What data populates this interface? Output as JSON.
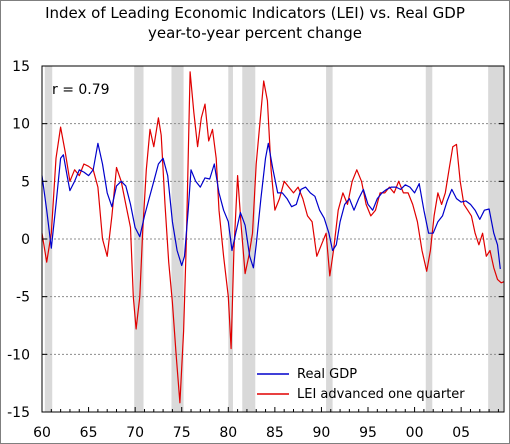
{
  "chart_data": {
    "type": "line",
    "title": "Index of Leading Economic Indicators (LEI) vs. Real GDP",
    "subtitle": "year-to-year percent change",
    "annotation": "r = 0.79",
    "xlabel": "",
    "ylabel": "",
    "xlim": [
      1960,
      2009.6
    ],
    "ylim": [
      -15,
      15
    ],
    "xticks": [
      1960,
      1965,
      1970,
      1975,
      1980,
      1985,
      1990,
      1995,
      2000,
      2005
    ],
    "xtick_labels": [
      "60",
      "65",
      "70",
      "75",
      "80",
      "85",
      "90",
      "95",
      "00",
      "05"
    ],
    "yticks": [
      -15,
      -10,
      -5,
      0,
      5,
      10,
      15
    ],
    "ytick_labels": [
      "-15",
      "-10",
      "-5",
      "0",
      "5",
      "10",
      "15"
    ],
    "grid": "horizontal dashed",
    "legend_position": "bottom-center",
    "recessions": [
      [
        1960.3,
        1961.1
      ],
      [
        1969.9,
        1970.9
      ],
      [
        1973.9,
        1975.2
      ],
      [
        1980.0,
        1980.5
      ],
      [
        1981.5,
        1982.9
      ],
      [
        1990.5,
        1991.2
      ],
      [
        2001.2,
        2001.9
      ],
      [
        2007.9,
        2009.5
      ]
    ],
    "series": [
      {
        "name": "Real GDP",
        "color": "#0000cc",
        "points": [
          [
            1960.0,
            5.5
          ],
          [
            1960.5,
            2.5
          ],
          [
            1961.0,
            -0.8
          ],
          [
            1961.5,
            3.0
          ],
          [
            1962.0,
            7.0
          ],
          [
            1962.3,
            7.3
          ],
          [
            1962.7,
            5.5
          ],
          [
            1963.0,
            4.2
          ],
          [
            1963.5,
            5.0
          ],
          [
            1964.0,
            6.0
          ],
          [
            1964.5,
            5.8
          ],
          [
            1965.0,
            5.5
          ],
          [
            1965.5,
            6.0
          ],
          [
            1966.0,
            8.3
          ],
          [
            1966.5,
            6.5
          ],
          [
            1967.0,
            4.0
          ],
          [
            1967.5,
            2.8
          ],
          [
            1968.0,
            4.6
          ],
          [
            1968.5,
            5.0
          ],
          [
            1969.0,
            4.6
          ],
          [
            1969.5,
            3.0
          ],
          [
            1970.0,
            1.0
          ],
          [
            1970.5,
            0.2
          ],
          [
            1971.0,
            2.0
          ],
          [
            1971.5,
            3.5
          ],
          [
            1972.0,
            5.0
          ],
          [
            1972.5,
            6.5
          ],
          [
            1973.0,
            7.0
          ],
          [
            1973.5,
            5.5
          ],
          [
            1974.0,
            1.5
          ],
          [
            1974.5,
            -1.0
          ],
          [
            1975.0,
            -2.3
          ],
          [
            1975.3,
            -1.5
          ],
          [
            1975.7,
            2.5
          ],
          [
            1976.0,
            6.0
          ],
          [
            1976.5,
            5.0
          ],
          [
            1977.0,
            4.5
          ],
          [
            1977.5,
            5.3
          ],
          [
            1978.0,
            5.2
          ],
          [
            1978.5,
            6.5
          ],
          [
            1979.0,
            4.0
          ],
          [
            1979.5,
            2.5
          ],
          [
            1980.0,
            1.5
          ],
          [
            1980.4,
            -1.0
          ],
          [
            1980.8,
            0.5
          ],
          [
            1981.3,
            2.3
          ],
          [
            1981.8,
            1.2
          ],
          [
            1982.3,
            -1.5
          ],
          [
            1982.7,
            -2.5
          ],
          [
            1983.0,
            -0.5
          ],
          [
            1983.5,
            3.5
          ],
          [
            1984.0,
            7.0
          ],
          [
            1984.3,
            8.3
          ],
          [
            1984.8,
            6.0
          ],
          [
            1985.3,
            4.0
          ],
          [
            1985.8,
            4.0
          ],
          [
            1986.3,
            3.5
          ],
          [
            1986.8,
            2.8
          ],
          [
            1987.3,
            3.0
          ],
          [
            1987.8,
            4.3
          ],
          [
            1988.3,
            4.5
          ],
          [
            1988.8,
            4.0
          ],
          [
            1989.3,
            3.7
          ],
          [
            1989.8,
            2.5
          ],
          [
            1990.3,
            1.8
          ],
          [
            1990.8,
            0.5
          ],
          [
            1991.2,
            -1.0
          ],
          [
            1991.6,
            -0.5
          ],
          [
            1992.0,
            1.5
          ],
          [
            1992.5,
            3.0
          ],
          [
            1993.0,
            3.5
          ],
          [
            1993.5,
            2.5
          ],
          [
            1994.0,
            3.5
          ],
          [
            1994.5,
            4.3
          ],
          [
            1995.0,
            3.0
          ],
          [
            1995.5,
            2.5
          ],
          [
            1996.0,
            3.5
          ],
          [
            1996.5,
            4.0
          ],
          [
            1997.0,
            4.3
          ],
          [
            1997.5,
            4.5
          ],
          [
            1998.0,
            4.5
          ],
          [
            1998.5,
            4.3
          ],
          [
            1999.0,
            4.7
          ],
          [
            1999.5,
            4.5
          ],
          [
            2000.0,
            4.0
          ],
          [
            2000.5,
            4.8
          ],
          [
            2001.0,
            2.5
          ],
          [
            2001.5,
            0.5
          ],
          [
            2002.0,
            0.5
          ],
          [
            2002.5,
            1.5
          ],
          [
            2003.0,
            2.0
          ],
          [
            2003.5,
            3.3
          ],
          [
            2004.0,
            4.3
          ],
          [
            2004.5,
            3.5
          ],
          [
            2005.0,
            3.2
          ],
          [
            2005.5,
            3.3
          ],
          [
            2006.0,
            3.0
          ],
          [
            2006.5,
            2.5
          ],
          [
            2007.0,
            1.7
          ],
          [
            2007.5,
            2.5
          ],
          [
            2008.0,
            2.6
          ],
          [
            2008.5,
            0.5
          ],
          [
            2008.9,
            -0.5
          ],
          [
            2009.2,
            -2.6
          ]
        ]
      },
      {
        "name": "LEI advanced one quarter",
        "color": "#e00000",
        "points": [
          [
            1960.0,
            0.5
          ],
          [
            1960.5,
            -2.0
          ],
          [
            1961.0,
            0.5
          ],
          [
            1961.5,
            7.0
          ],
          [
            1962.0,
            9.7
          ],
          [
            1962.5,
            7.5
          ],
          [
            1963.0,
            5.0
          ],
          [
            1963.5,
            6.0
          ],
          [
            1964.0,
            5.5
          ],
          [
            1964.5,
            6.5
          ],
          [
            1965.0,
            6.3
          ],
          [
            1965.5,
            6.0
          ],
          [
            1966.0,
            4.5
          ],
          [
            1966.5,
            0.0
          ],
          [
            1967.0,
            -1.5
          ],
          [
            1967.5,
            2.0
          ],
          [
            1968.0,
            6.2
          ],
          [
            1968.5,
            5.0
          ],
          [
            1969.0,
            3.0
          ],
          [
            1969.5,
            1.0
          ],
          [
            1969.8,
            -5.0
          ],
          [
            1970.1,
            -7.8
          ],
          [
            1970.5,
            -5.0
          ],
          [
            1970.8,
            0.5
          ],
          [
            1971.2,
            6.0
          ],
          [
            1971.6,
            9.5
          ],
          [
            1972.0,
            8.0
          ],
          [
            1972.5,
            10.5
          ],
          [
            1972.8,
            9.0
          ],
          [
            1973.2,
            3.0
          ],
          [
            1973.6,
            -2.0
          ],
          [
            1974.0,
            -5.5
          ],
          [
            1974.4,
            -10.0
          ],
          [
            1974.8,
            -14.2
          ],
          [
            1975.2,
            -8.0
          ],
          [
            1975.5,
            0.0
          ],
          [
            1975.9,
            14.5
          ],
          [
            1976.3,
            11.0
          ],
          [
            1976.7,
            8.0
          ],
          [
            1977.1,
            10.5
          ],
          [
            1977.5,
            11.7
          ],
          [
            1977.9,
            8.5
          ],
          [
            1978.3,
            9.5
          ],
          [
            1978.7,
            7.0
          ],
          [
            1979.0,
            2.5
          ],
          [
            1979.5,
            -1.5
          ],
          [
            1980.0,
            -5.0
          ],
          [
            1980.3,
            -9.5
          ],
          [
            1980.6,
            -1.0
          ],
          [
            1981.0,
            5.5
          ],
          [
            1981.4,
            1.0
          ],
          [
            1981.8,
            -3.0
          ],
          [
            1982.2,
            -1.5
          ],
          [
            1982.6,
            0.5
          ],
          [
            1983.0,
            6.5
          ],
          [
            1983.5,
            11.0
          ],
          [
            1983.8,
            13.7
          ],
          [
            1984.2,
            12.0
          ],
          [
            1984.6,
            6.0
          ],
          [
            1985.0,
            2.5
          ],
          [
            1985.5,
            3.5
          ],
          [
            1986.0,
            5.0
          ],
          [
            1986.5,
            4.5
          ],
          [
            1987.0,
            4.0
          ],
          [
            1987.5,
            4.5
          ],
          [
            1988.0,
            3.5
          ],
          [
            1988.5,
            2.0
          ],
          [
            1989.0,
            1.5
          ],
          [
            1989.5,
            -1.5
          ],
          [
            1990.0,
            -0.5
          ],
          [
            1990.5,
            0.5
          ],
          [
            1990.9,
            -3.2
          ],
          [
            1991.3,
            -1.0
          ],
          [
            1991.8,
            2.5
          ],
          [
            1992.3,
            4.0
          ],
          [
            1992.8,
            3.0
          ],
          [
            1993.3,
            5.0
          ],
          [
            1993.8,
            6.0
          ],
          [
            1994.3,
            5.0
          ],
          [
            1994.8,
            3.0
          ],
          [
            1995.3,
            2.0
          ],
          [
            1995.8,
            2.5
          ],
          [
            1996.3,
            4.0
          ],
          [
            1996.8,
            4.0
          ],
          [
            1997.3,
            4.5
          ],
          [
            1997.8,
            4.0
          ],
          [
            1998.3,
            5.0
          ],
          [
            1998.8,
            4.0
          ],
          [
            1999.3,
            4.0
          ],
          [
            1999.8,
            3.0
          ],
          [
            2000.3,
            1.5
          ],
          [
            2000.8,
            -1.0
          ],
          [
            2001.3,
            -2.8
          ],
          [
            2001.7,
            -1.0
          ],
          [
            2002.1,
            2.0
          ],
          [
            2002.5,
            4.0
          ],
          [
            2002.9,
            3.0
          ],
          [
            2003.3,
            4.0
          ],
          [
            2003.7,
            6.0
          ],
          [
            2004.1,
            8.0
          ],
          [
            2004.5,
            8.2
          ],
          [
            2004.9,
            5.0
          ],
          [
            2005.3,
            3.0
          ],
          [
            2005.7,
            2.5
          ],
          [
            2006.1,
            2.0
          ],
          [
            2006.5,
            0.5
          ],
          [
            2006.9,
            -0.5
          ],
          [
            2007.3,
            0.5
          ],
          [
            2007.7,
            -1.5
          ],
          [
            2008.1,
            -1.0
          ],
          [
            2008.5,
            -2.5
          ],
          [
            2008.9,
            -3.5
          ],
          [
            2009.3,
            -3.8
          ],
          [
            2009.6,
            -3.7
          ]
        ]
      }
    ]
  }
}
